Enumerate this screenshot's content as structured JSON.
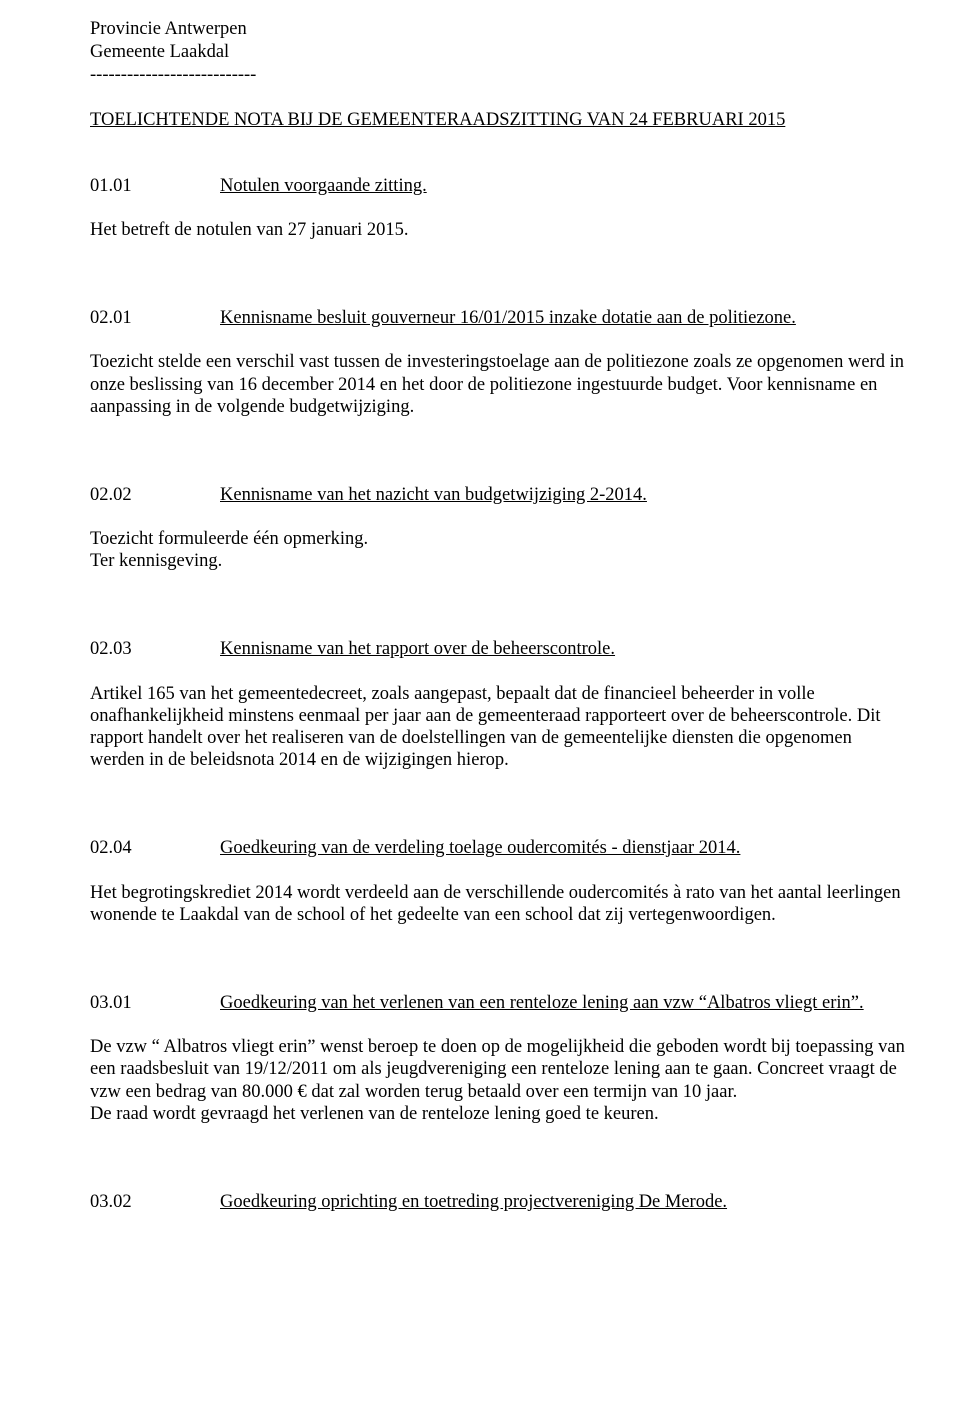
{
  "header": {
    "line1": "Provincie Antwerpen",
    "line2": "Gemeente Laakdal",
    "divider": "---------------------------"
  },
  "docTitle": "TOELICHTENDE NOTA BIJ DE GEMEENTERAADSZITTING VAN 24 FEBRUARI 2015",
  "items": [
    {
      "number": "01.01",
      "title": "Notulen voorgaande zitting.",
      "body": [
        "Het betreft de notulen van 27 januari 2015."
      ]
    },
    {
      "number": "02.01",
      "title": "Kennisname besluit gouverneur 16/01/2015 inzake dotatie aan de politiezone.",
      "body": [
        "Toezicht stelde een verschil vast tussen de investeringstoelage aan de politiezone zoals ze opgenomen werd in onze beslissing van 16 december 2014 en het door de politiezone ingestuurde budget. Voor kennisname en aanpassing in de volgende budgetwijziging."
      ]
    },
    {
      "number": "02.02",
      "title": "Kennisname van het nazicht van budgetwijziging 2-2014.",
      "body": [
        "Toezicht formuleerde één opmerking.",
        "Ter kennisgeving."
      ]
    },
    {
      "number": "02.03",
      "title": "Kennisname van het rapport over de beheerscontrole.",
      "body": [
        "Artikel 165 van het gemeentedecreet, zoals aangepast, bepaalt dat de financieel beheerder in volle onafhankelijkheid minstens eenmaal per jaar aan de gemeenteraad rapporteert over de beheerscontrole. Dit rapport handelt over het realiseren van de doelstellingen van de gemeentelijke diensten die opgenomen werden in de beleidsnota 2014 en de wijzigingen hierop."
      ]
    },
    {
      "number": "02.04",
      "title": "Goedkeuring van de verdeling toelage oudercomités - dienstjaar 2014.",
      "body": [
        "Het begrotingskrediet 2014 wordt verdeeld aan de verschillende oudercomités à rato van het aantal leerlingen wonende te Laakdal van de school of het gedeelte van een school dat zij vertegenwoordigen."
      ]
    },
    {
      "number": "03.01",
      "title": "Goedkeuring van het verlenen van een renteloze lening aan vzw “Albatros vliegt erin”.",
      "body": [
        "De vzw “ Albatros vliegt erin” wenst beroep te doen op de mogelijkheid die geboden wordt bij toepassing van een raadsbesluit van 19/12/2011 om als jeugdvereniging een renteloze lening aan te gaan. Concreet vraagt de vzw een bedrag van 80.000 € dat zal worden terug betaald over een termijn van 10 jaar.",
        "De raad wordt gevraagd het verlenen van de renteloze lening goed te keuren."
      ]
    },
    {
      "number": "03.02",
      "title": "Goedkeuring oprichting en toetreding projectvereniging De Merode.",
      "body": []
    }
  ]
}
